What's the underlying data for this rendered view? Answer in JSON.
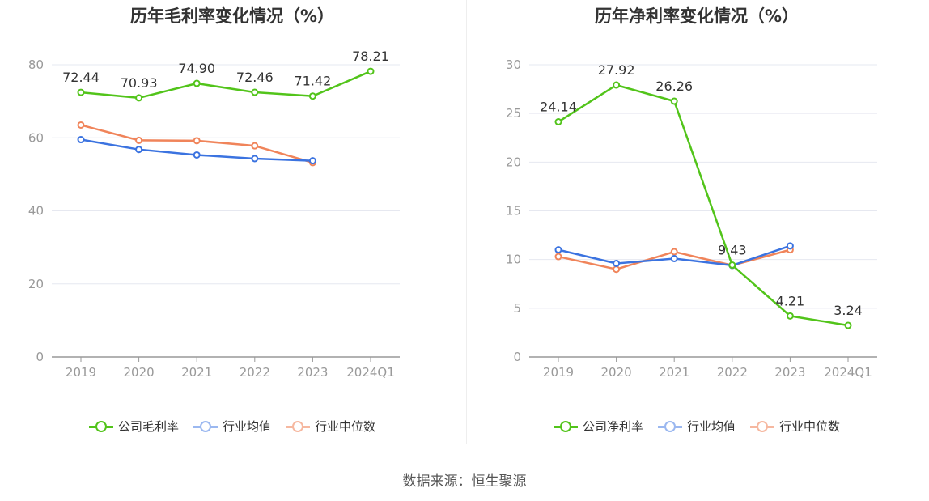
{
  "source_text": "数据来源：恒生聚源",
  "chart_data": [
    {
      "type": "line",
      "title": "历年毛利率变化情况（%）",
      "categories": [
        "2019",
        "2020",
        "2021",
        "2022",
        "2023",
        "2024Q1"
      ],
      "ylim": [
        0,
        80
      ],
      "yticks": [
        0,
        20,
        40,
        60,
        80
      ],
      "grid": true,
      "legend_position": "bottom",
      "series": [
        {
          "name": "公司毛利率",
          "color": "#52c41a",
          "values": [
            72.44,
            70.93,
            74.9,
            72.46,
            71.42,
            78.21
          ],
          "labels": [
            "72.44",
            "70.93",
            "74.90",
            "72.46",
            "71.42",
            "78.21"
          ]
        },
        {
          "name": "行业均值",
          "color": "#3b73e0",
          "values": [
            59.5,
            56.8,
            55.3,
            54.3,
            53.7,
            null
          ]
        },
        {
          "name": "行业中位数",
          "color": "#f0845a",
          "values": [
            63.5,
            59.3,
            59.2,
            57.8,
            53.2,
            null
          ]
        }
      ]
    },
    {
      "type": "line",
      "title": "历年净利率变化情况（%）",
      "categories": [
        "2019",
        "2020",
        "2021",
        "2022",
        "2023",
        "2024Q1"
      ],
      "ylim": [
        0,
        30
      ],
      "yticks": [
        0,
        5,
        10,
        15,
        20,
        25,
        30
      ],
      "grid": true,
      "legend_position": "bottom",
      "series": [
        {
          "name": "公司净利率",
          "color": "#52c41a",
          "values": [
            24.14,
            27.92,
            26.26,
            9.43,
            4.21,
            3.24
          ],
          "labels": [
            "24.14",
            "27.92",
            "26.26",
            "9.43",
            "4.21",
            "3.24"
          ]
        },
        {
          "name": "行业均值",
          "color": "#3b73e0",
          "values": [
            11.0,
            9.6,
            10.1,
            9.4,
            11.4,
            null
          ]
        },
        {
          "name": "行业中位数",
          "color": "#f0845a",
          "values": [
            10.3,
            9.0,
            10.8,
            9.4,
            11.0,
            null
          ]
        }
      ]
    }
  ]
}
